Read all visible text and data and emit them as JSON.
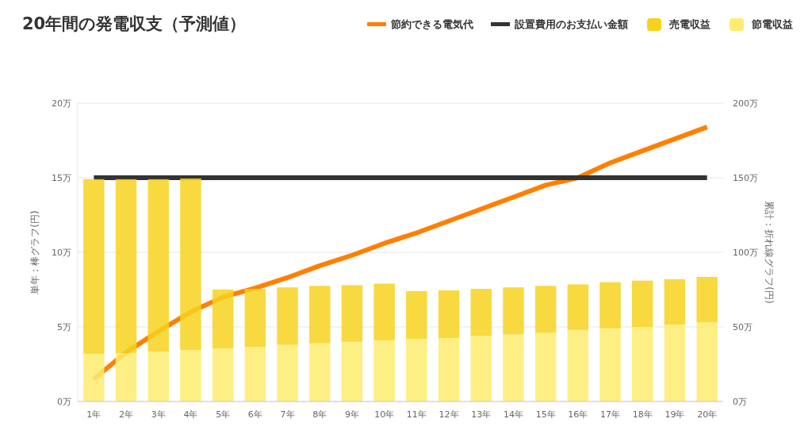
{
  "chart_data": {
    "type": "bar",
    "title": "20年間の発電収支（予測値）",
    "ylabel": "単年：棒グラフ(円)",
    "y2label": "累計：折れ線グラフ(円)",
    "categories": [
      "1年",
      "2年",
      "3年",
      "4年",
      "5年",
      "6年",
      "7年",
      "8年",
      "9年",
      "10年",
      "11年",
      "12年",
      "13年",
      "14年",
      "15年",
      "16年",
      "17年",
      "18年",
      "19年",
      "20年"
    ],
    "stacked": true,
    "grid": "y",
    "legend": "top right",
    "ylim": [
      0,
      20
    ],
    "yticks": [
      {
        "value": 0,
        "label": "0万"
      },
      {
        "value": 5,
        "label": "5万"
      },
      {
        "value": 10,
        "label": "10万"
      },
      {
        "value": 15,
        "label": "15万"
      },
      {
        "value": 20,
        "label": "20万"
      }
    ],
    "y2lim": [
      0,
      200
    ],
    "y2ticks": [
      {
        "value": 0,
        "label": "0万"
      },
      {
        "value": 50,
        "label": "50万"
      },
      {
        "value": 100,
        "label": "100万"
      },
      {
        "value": 150,
        "label": "150万"
      },
      {
        "value": 200,
        "label": "200万"
      }
    ],
    "series": [
      {
        "name": "節約できる電気代",
        "type": "line",
        "axis": "y2",
        "color": "#ff8000",
        "values": [
          15,
          33,
          47,
          60,
          70,
          76,
          83,
          91,
          98,
          106,
          113,
          121,
          129,
          137,
          145,
          150,
          160,
          168,
          176,
          184
        ]
      },
      {
        "name": "設置費用のお支払い金額",
        "type": "line",
        "axis": "y2",
        "color": "#333333",
        "values": [
          150,
          150,
          150,
          150,
          150,
          150,
          150,
          150,
          150,
          150,
          150,
          150,
          150,
          150,
          150,
          150,
          150,
          150,
          150,
          150
        ]
      },
      {
        "name": "節電収益",
        "color": "#fdec6f",
        "values": [
          3.2,
          3.25,
          3.35,
          3.45,
          3.55,
          3.65,
          3.8,
          3.9,
          4.0,
          4.1,
          4.2,
          4.25,
          4.4,
          4.5,
          4.6,
          4.8,
          4.9,
          5.0,
          5.15,
          5.3
        ]
      },
      {
        "name": "売電収益",
        "color": "#f7d21f",
        "values": [
          11.7,
          11.65,
          11.55,
          11.5,
          3.95,
          3.9,
          3.85,
          3.85,
          3.8,
          3.8,
          3.2,
          3.2,
          3.15,
          3.15,
          3.15,
          3.05,
          3.1,
          3.1,
          3.05,
          3.05
        ]
      }
    ]
  }
}
